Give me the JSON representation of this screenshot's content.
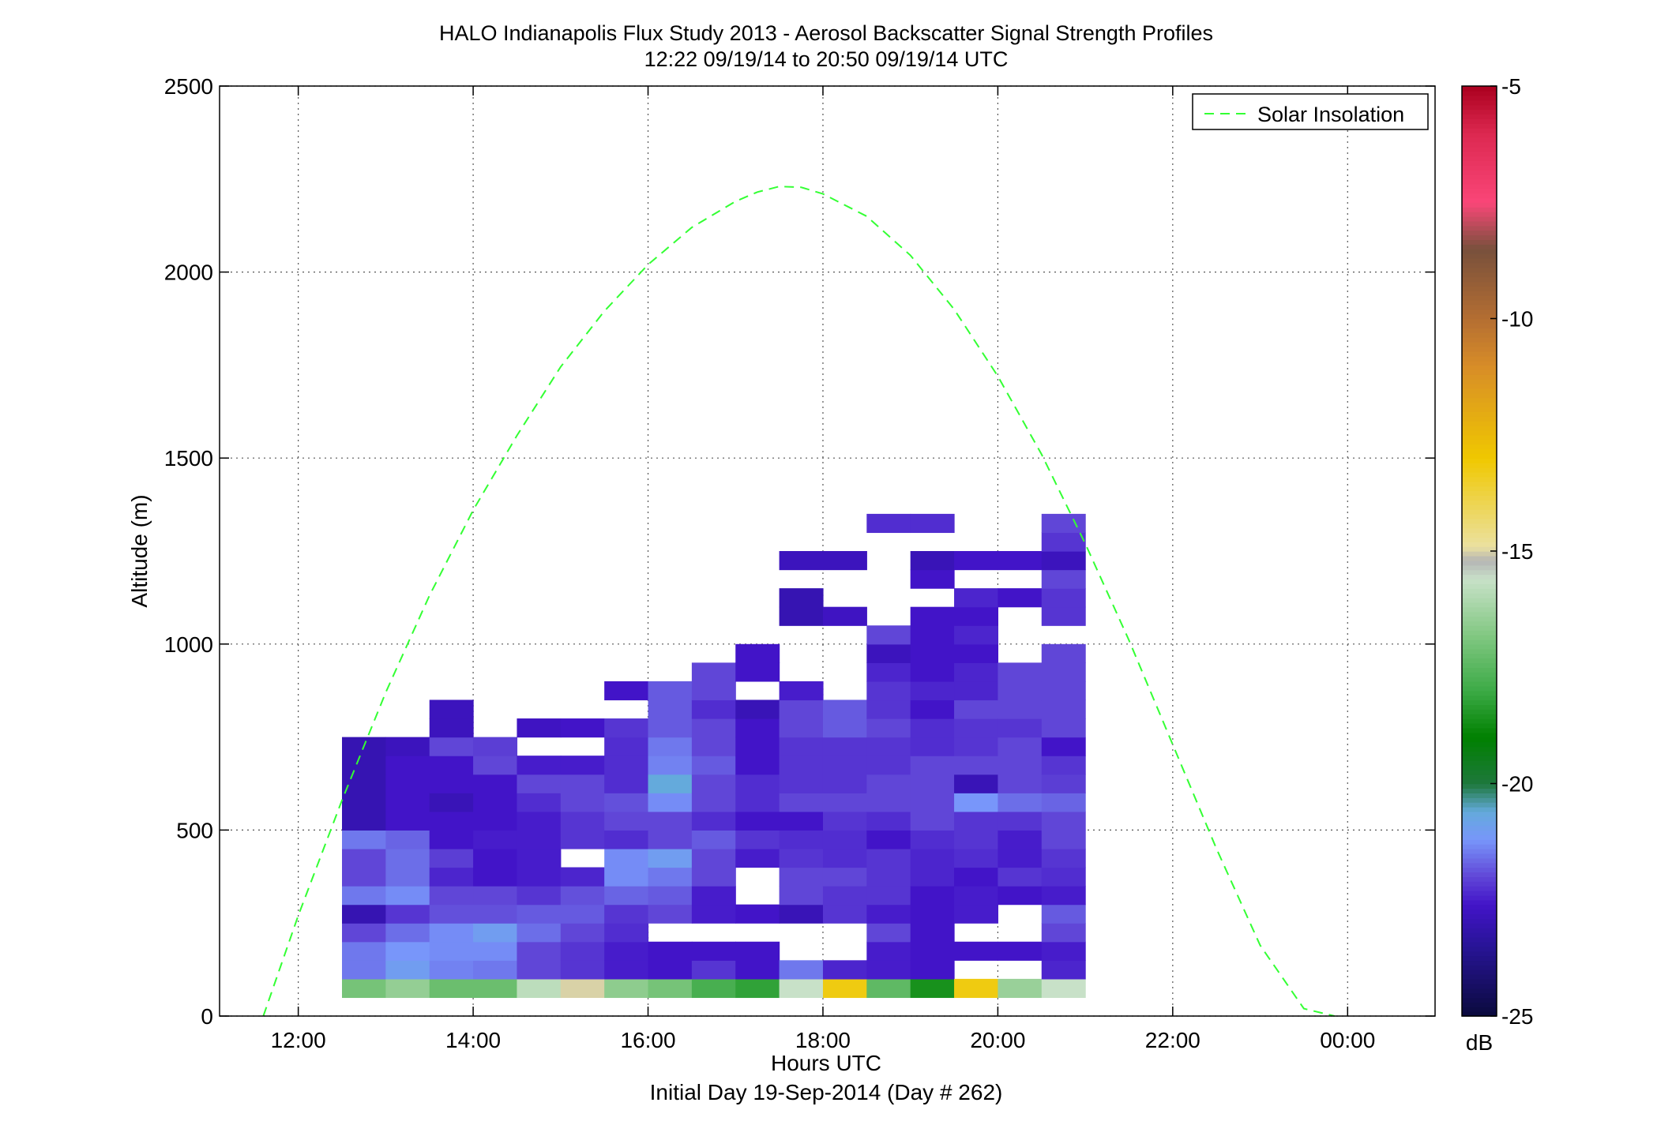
{
  "chart_data": {
    "type": "heatmap",
    "title": "HALO Indianapolis Flux Study 2013 - Aerosol Backscatter Signal Strength Profiles",
    "subtitle": "12:22 09/19/14 to 20:50 09/19/14  UTC",
    "xlabel": "Hours UTC",
    "xlabel2": "Initial Day 19-Sep-2014 (Day # 262)",
    "ylabel": "Altitude (m)",
    "xlim": [
      11.1,
      25.0
    ],
    "ylim": [
      0,
      2500
    ],
    "x_ticks": [
      12,
      14,
      16,
      18,
      20,
      22,
      24
    ],
    "x_tick_labels": [
      "12:00",
      "14:00",
      "16:00",
      "18:00",
      "20:00",
      "22:00",
      "00:00"
    ],
    "y_ticks": [
      0,
      500,
      1000,
      1500,
      2000,
      2500
    ],
    "y_tick_labels": [
      "0",
      "500",
      "1000",
      "1500",
      "2000",
      "2500"
    ],
    "grid": true,
    "legend": {
      "position": "top-right",
      "entries": [
        "Solar Insolation"
      ]
    },
    "colorbar": {
      "min": -25,
      "max": -5,
      "unit": "dB",
      "ticks": [
        -5,
        -10,
        -15,
        -20,
        -25
      ],
      "tick_labels": [
        "-5",
        "-10",
        "-15",
        "-20",
        "-25"
      ]
    },
    "colors": {
      "solar_line": "#33ff33",
      "gridline": "#555555"
    },
    "heatmap": {
      "x_start": 12.5,
      "x_step": 0.5,
      "y_bin_edges": [
        50,
        100,
        150,
        200,
        250,
        300,
        350,
        400,
        450,
        500,
        550,
        600,
        650,
        700,
        750,
        800,
        850,
        900,
        950,
        1000,
        1050,
        1100,
        1150,
        1200,
        1250,
        1300,
        1350
      ],
      "columns": [
        [
          -17.0,
          -21.5,
          -21.5,
          -22.0,
          -23.0,
          -21.5,
          -22.0,
          -22.0,
          -21.5,
          -23.0,
          -23.0,
          -23.0,
          -23.0,
          -23.0,
          null,
          null,
          null,
          null,
          null,
          null,
          null,
          null,
          null,
          null,
          null,
          null
        ],
        [
          -16.5,
          -21.0,
          -21.2,
          -21.6,
          -22.2,
          -21.3,
          -21.6,
          -21.6,
          -21.7,
          -22.6,
          -22.6,
          -22.6,
          -22.6,
          -22.8,
          null,
          null,
          null,
          null,
          null,
          null,
          null,
          null,
          null,
          null,
          null,
          null
        ],
        [
          -17.2,
          -21.4,
          -21.3,
          -21.3,
          -21.9,
          -22.0,
          -22.4,
          -22.1,
          -22.6,
          -22.6,
          -22.9,
          -22.6,
          -22.6,
          -22.0,
          -22.8,
          -22.8,
          null,
          null,
          null,
          null,
          null,
          null,
          null,
          null,
          null,
          null
        ],
        [
          -17.2,
          -21.5,
          -21.3,
          -21.0,
          -21.9,
          -22.0,
          -22.6,
          -22.6,
          -22.5,
          -22.6,
          -22.6,
          -22.6,
          -22.0,
          -22.1,
          null,
          null,
          null,
          null,
          null,
          null,
          null,
          null,
          null,
          null,
          null,
          null
        ],
        [
          -15.8,
          -22.0,
          -22.0,
          -21.6,
          -21.8,
          -22.2,
          -22.5,
          -22.5,
          -22.5,
          -22.5,
          -22.3,
          -22.0,
          -22.5,
          null,
          -22.7,
          null,
          null,
          null,
          null,
          null,
          null,
          null,
          null,
          null,
          null,
          null
        ],
        [
          -15.0,
          -22.2,
          -22.2,
          -22.0,
          -21.8,
          -21.9,
          -22.4,
          null,
          -22.2,
          -22.2,
          -22.0,
          -22.0,
          -22.5,
          null,
          -22.6,
          null,
          null,
          null,
          null,
          null,
          null,
          null,
          null,
          null,
          null,
          null
        ],
        [
          -16.6,
          -22.5,
          -22.5,
          -22.3,
          -22.2,
          -21.7,
          -21.3,
          -21.3,
          -22.3,
          -22.0,
          -21.9,
          -22.3,
          -22.3,
          -22.3,
          -22.2,
          null,
          -22.6,
          null,
          null,
          null,
          null,
          null,
          null,
          null,
          null,
          null
        ],
        [
          -17.0,
          -22.6,
          -22.6,
          null,
          -22.0,
          -21.8,
          -21.5,
          -21.0,
          -22.0,
          -22.0,
          -21.3,
          -20.6,
          -21.4,
          -21.5,
          -21.8,
          -21.8,
          -21.8,
          null,
          null,
          null,
          null,
          null,
          null,
          null,
          null,
          null
        ],
        [
          -17.8,
          -22.2,
          -22.6,
          null,
          -22.5,
          -22.5,
          -22.0,
          -22.0,
          -21.8,
          -22.3,
          -22.0,
          -22.0,
          -21.8,
          -22.0,
          -22.0,
          -22.3,
          -22.0,
          -22.0,
          null,
          null,
          null,
          null,
          null,
          null,
          null,
          null
        ],
        [
          -18.2,
          -22.6,
          -22.6,
          null,
          -22.6,
          null,
          null,
          -22.5,
          -22.2,
          -22.6,
          -22.3,
          -22.3,
          -22.6,
          -22.6,
          -22.6,
          -22.9,
          null,
          -22.6,
          -22.6,
          null,
          null,
          null,
          null,
          null,
          null,
          null
        ],
        [
          -15.6,
          -21.5,
          null,
          null,
          -22.9,
          -22.0,
          -22.0,
          -22.2,
          -22.3,
          -22.6,
          -22.0,
          -22.2,
          -22.2,
          -22.2,
          -22.0,
          -22.0,
          -22.5,
          null,
          null,
          null,
          -23.0,
          -23.0,
          null,
          -22.8,
          null,
          null
        ],
        [
          -13.2,
          -22.4,
          null,
          null,
          -22.2,
          -22.2,
          -22.0,
          -22.3,
          -22.3,
          -22.2,
          -22.0,
          -22.2,
          -22.2,
          -22.2,
          -21.8,
          -21.8,
          null,
          null,
          null,
          null,
          -22.7,
          null,
          null,
          -22.8,
          null,
          null
        ],
        [
          -17.4,
          -22.5,
          -22.5,
          -22.0,
          -22.5,
          -22.2,
          -22.2,
          -22.2,
          -22.6,
          -22.3,
          -22.0,
          -22.0,
          -22.2,
          -22.2,
          -22.0,
          -22.2,
          -22.2,
          -22.4,
          -22.8,
          -22.0,
          null,
          null,
          null,
          null,
          null,
          -22.3
        ],
        [
          -18.6,
          -22.6,
          -22.6,
          -22.6,
          -22.6,
          -22.6,
          -22.4,
          -22.4,
          -22.3,
          -22.0,
          -22.0,
          -22.0,
          -22.0,
          -22.3,
          -22.3,
          -22.6,
          -22.4,
          -22.6,
          -22.6,
          -22.6,
          -22.6,
          null,
          -22.6,
          -22.9,
          null,
          -22.3
        ],
        [
          -13.2,
          null,
          -22.6,
          null,
          -22.5,
          -22.5,
          -22.6,
          -22.3,
          -22.2,
          -22.2,
          -21.2,
          -22.9,
          -22.0,
          -22.2,
          -22.2,
          -22.0,
          -22.4,
          -22.4,
          -22.6,
          -22.4,
          -22.6,
          -22.4,
          null,
          -22.6,
          null,
          null
        ],
        [
          -16.4,
          null,
          -22.6,
          null,
          null,
          -22.6,
          -22.2,
          -22.5,
          -22.5,
          -22.2,
          -21.6,
          -22.0,
          -22.0,
          -22.0,
          -22.2,
          -22.0,
          -22.0,
          -22.0,
          null,
          null,
          null,
          -22.6,
          null,
          -22.6,
          null,
          null
        ],
        [
          -15.6,
          -22.4,
          -22.5,
          -22.0,
          -21.8,
          -22.5,
          -22.3,
          -22.2,
          -22.0,
          -22.0,
          -21.7,
          -22.1,
          -22.2,
          -22.6,
          -22.0,
          -22.0,
          -22.0,
          -22.0,
          -22.0,
          null,
          -22.2,
          -22.2,
          -22.0,
          -22.8,
          -22.2,
          -22.0
        ]
      ]
    },
    "solar_insolation": {
      "x": [
        11.6,
        12.0,
        12.5,
        13.0,
        13.5,
        14.0,
        14.5,
        15.0,
        15.5,
        16.0,
        16.5,
        17.0,
        17.25,
        17.5,
        17.75,
        18.0,
        18.5,
        19.0,
        19.5,
        20.0,
        20.5,
        21.0,
        21.5,
        22.0,
        22.5,
        23.0,
        23.5,
        23.85
      ],
      "y": [
        0,
        270,
        580,
        870,
        1130,
        1360,
        1560,
        1745,
        1895,
        2020,
        2120,
        2190,
        2215,
        2230,
        2228,
        2210,
        2150,
        2045,
        1900,
        1720,
        1510,
        1270,
        1010,
        730,
        450,
        190,
        20,
        -30
      ]
    }
  }
}
